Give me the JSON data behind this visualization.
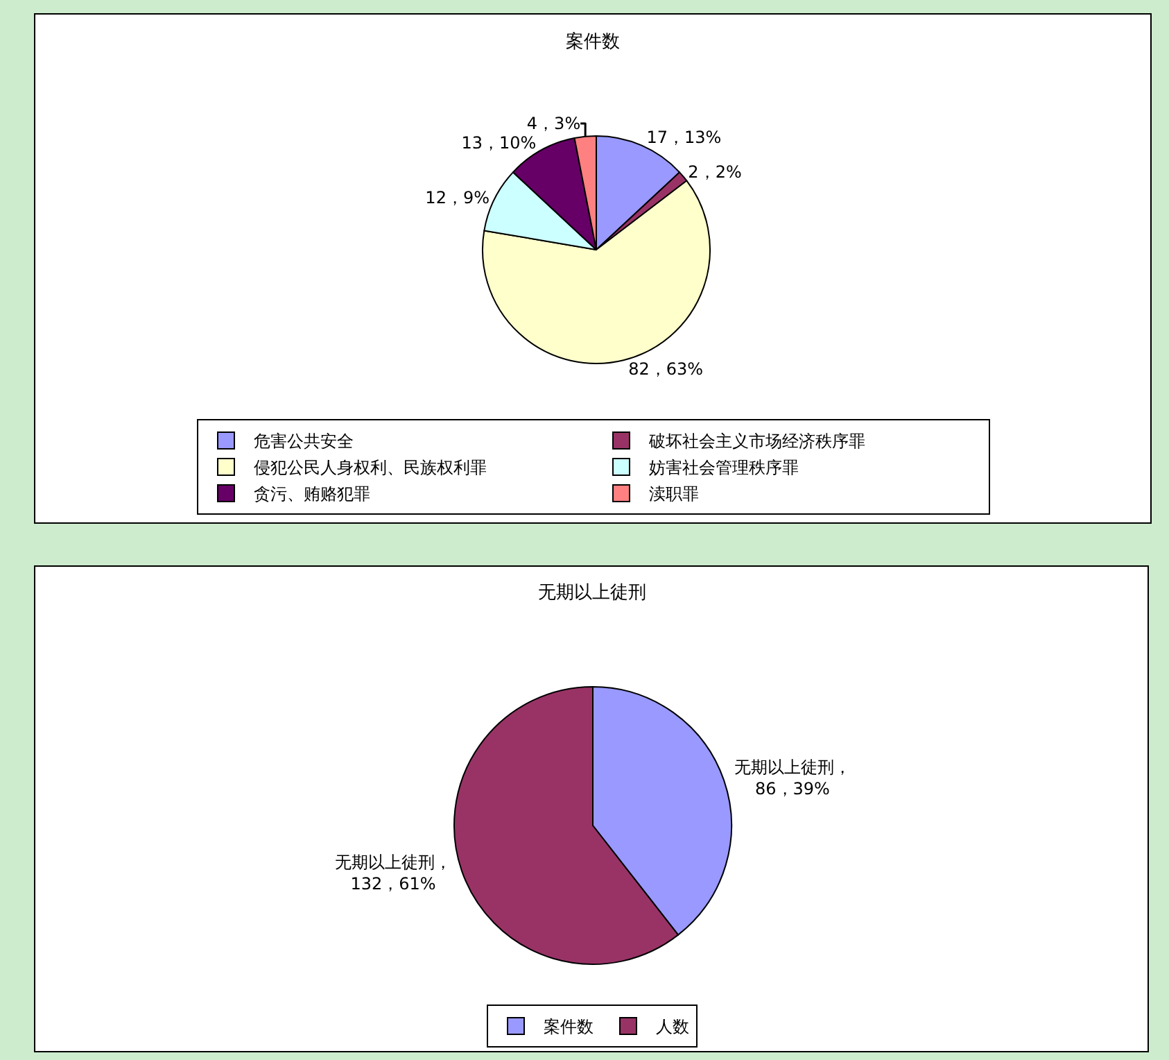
{
  "chart_data": [
    {
      "type": "pie",
      "title": "案件数",
      "categories": [
        "危害公共安全",
        "破坏社会主义市场经济秩序罪",
        "侵犯公民人身权利、民族权利罪",
        "妨害社会管理秩序罪",
        "贪污、贿赂犯罪",
        "渎职罪"
      ],
      "values": [
        17,
        2,
        82,
        12,
        13,
        4
      ],
      "colors": [
        "#9999ff",
        "#993366",
        "#ffffcc",
        "#ccffff",
        "#660066",
        "#ff8080"
      ],
      "value_labels": [
        "17，13%",
        "2，2%",
        "82，63%",
        "12，9%",
        "13，10%",
        "4，3%"
      ],
      "legend": "bottom"
    },
    {
      "type": "pie",
      "title": "无期以上徒刑",
      "categories": [
        "案件数",
        "人数"
      ],
      "values": [
        86,
        132
      ],
      "colors": [
        "#9999ff",
        "#993366"
      ],
      "value_labels": [
        "无期以上徒刑，\n86，39%",
        "无期以上徒刑，\n132，61%"
      ],
      "legend": "bottom"
    }
  ]
}
